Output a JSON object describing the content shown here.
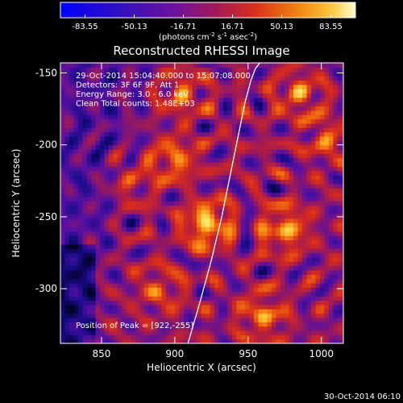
{
  "colorbar": {
    "ticks": [
      "-83.55",
      "-50.13",
      "-16.71",
      "16.71",
      "50.13",
      "83.55"
    ],
    "units_main": "(photons cm",
    "units_sup1": "-2",
    "units_mid": " s",
    "units_sup2": "-1",
    "units_mid2": " asec",
    "units_sup3": "-2",
    "units_end": ")",
    "range": [
      -83.55,
      83.55
    ]
  },
  "chart_data": {
    "type": "heatmap",
    "title": "Reconstructed RHESSI Image",
    "xlabel": "Heliocentric X (arcsec)",
    "ylabel": "Heliocentric Y (arcsec)",
    "xlim": [
      822,
      1015
    ],
    "ylim": [
      -338,
      -143
    ],
    "x_ticks": [
      850,
      900,
      950,
      1000
    ],
    "y_ticks": [
      -150,
      -200,
      -250,
      -300
    ],
    "annotations": [
      "29-Oct-2014 15:04:40.000 to 15:07:08.000",
      "Detectors: 3F 6F 9F, Att 1",
      "Energy Range: 3.0 - 6.0 keV",
      "Clean     Total counts: 1.48E+03"
    ],
    "peak_label": "Position of Peak = [922,-255]",
    "peak": [
      922,
      -255
    ],
    "limb_curve": {
      "x": [
        909,
        917,
        925,
        932,
        938,
        944,
        948,
        952,
        955,
        958
      ],
      "y": [
        -338,
        -310,
        -280,
        -250,
        -220,
        -190,
        -170,
        -155,
        -147,
        -143
      ]
    },
    "sources": [
      {
        "x": 922,
        "y": -255,
        "amp": 1.0
      },
      {
        "x": 900,
        "y": -210,
        "amp": 0.65
      },
      {
        "x": 905,
        "y": -165,
        "amp": 0.55
      },
      {
        "x": 975,
        "y": -258,
        "amp": 0.8
      },
      {
        "x": 985,
        "y": -165,
        "amp": 0.6
      },
      {
        "x": 960,
        "y": -318,
        "amp": 0.65
      },
      {
        "x": 1005,
        "y": -195,
        "amp": 0.5
      },
      {
        "x": 890,
        "y": -300,
        "amp": 0.45
      },
      {
        "x": 870,
        "y": -225,
        "amp": 0.4
      }
    ],
    "palette": [
      "#000020",
      "#1a0c8c",
      "#5a10a0",
      "#a01a55",
      "#d62a1c",
      "#f06a10",
      "#ffb020",
      "#ffe060",
      "#ffffa0"
    ]
  },
  "timestamp": "30-Oct-2014 06:10"
}
